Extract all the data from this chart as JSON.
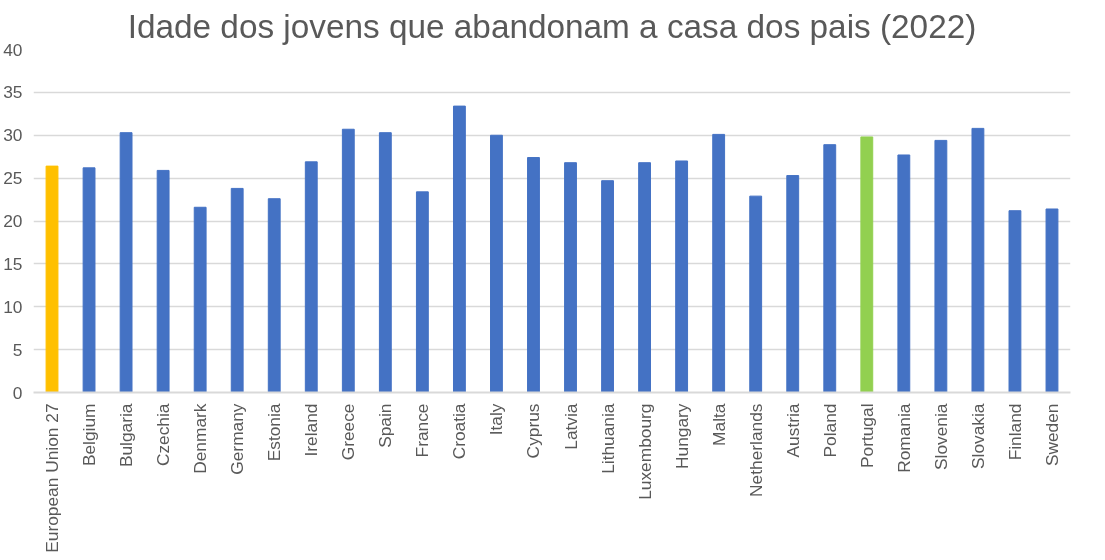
{
  "chart_data": {
    "type": "bar",
    "title": "Idade dos jovens que abandonam a casa dos pais (2022)",
    "categories": [
      "European Union 27",
      "Belgium",
      "Bulgaria",
      "Czechia",
      "Denmark",
      "Germany",
      "Estonia",
      "Ireland",
      "Greece",
      "Spain",
      "France",
      "Croatia",
      "Italy",
      "Cyprus",
      "Latvia",
      "Lithuania",
      "Luxembourg",
      "Hungary",
      "Malta",
      "Netherlands",
      "Austria",
      "Poland",
      "Portugal",
      "Romania",
      "Slovenia",
      "Slovakia",
      "Finland",
      "Sweden"
    ],
    "values": [
      26.4,
      26.2,
      30.3,
      25.9,
      21.6,
      23.8,
      22.6,
      26.9,
      30.7,
      30.3,
      23.4,
      33.4,
      30.0,
      27.4,
      26.8,
      24.7,
      26.8,
      27.0,
      30.1,
      22.9,
      25.3,
      28.9,
      29.8,
      27.7,
      29.4,
      30.8,
      21.2,
      21.4
    ],
    "colors": [
      "#ffc000",
      "#4472c4",
      "#4472c4",
      "#4472c4",
      "#4472c4",
      "#4472c4",
      "#4472c4",
      "#4472c4",
      "#4472c4",
      "#4472c4",
      "#4472c4",
      "#4472c4",
      "#4472c4",
      "#4472c4",
      "#4472c4",
      "#4472c4",
      "#4472c4",
      "#4472c4",
      "#4472c4",
      "#4472c4",
      "#4472c4",
      "#4472c4",
      "#92d050",
      "#4472c4",
      "#4472c4",
      "#4472c4",
      "#4472c4",
      "#4472c4"
    ],
    "ylim": [
      0,
      40
    ],
    "yticks": [
      0,
      5,
      10,
      15,
      20,
      25,
      30,
      35,
      40
    ],
    "grid": "y"
  }
}
